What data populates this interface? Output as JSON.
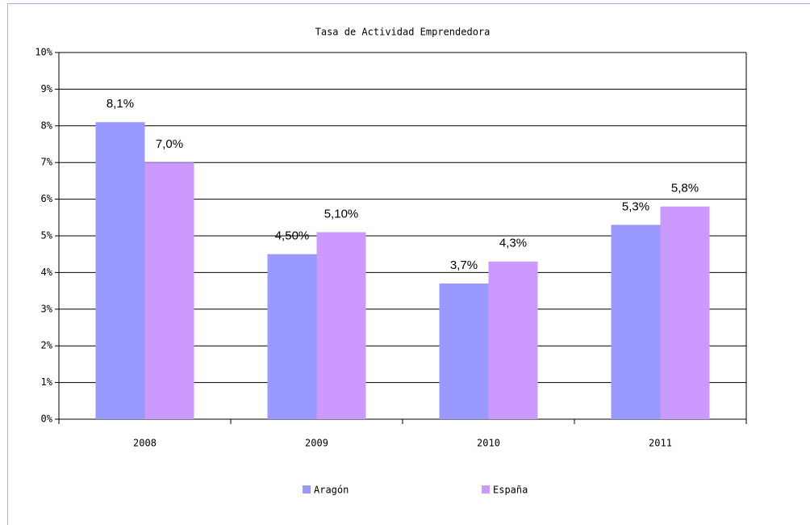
{
  "chart_data": {
    "type": "bar",
    "title": "Tasa de Actividad Emprendedora",
    "categories": [
      "2008",
      "2009",
      "2010",
      "2011"
    ],
    "series": [
      {
        "name": "Aragón",
        "color": "#9999ff",
        "values": [
          8.1,
          4.5,
          3.7,
          5.3
        ],
        "value_labels": [
          "8,1%",
          "4,50%",
          "3,7%",
          "5,3%"
        ]
      },
      {
        "name": "España",
        "color": "#cc99ff",
        "values": [
          7.0,
          5.1,
          4.3,
          5.8
        ],
        "value_labels": [
          "7,0%",
          "5,10%",
          "4,3%",
          "5,8%"
        ]
      }
    ],
    "ylim": [
      0,
      10
    ],
    "yticks": [
      {
        "value": 0,
        "label": "0%"
      },
      {
        "value": 1,
        "label": "1%"
      },
      {
        "value": 2,
        "label": "2%"
      },
      {
        "value": 3,
        "label": "3%"
      },
      {
        "value": 4,
        "label": "4%"
      },
      {
        "value": 5,
        "label": "5%"
      },
      {
        "value": 6,
        "label": "6%"
      },
      {
        "value": 7,
        "label": "7%"
      },
      {
        "value": 8,
        "label": "8%"
      },
      {
        "value": 9,
        "label": "9%"
      },
      {
        "value": 10,
        "label": "10%"
      }
    ],
    "grid": true,
    "legend": "bottom"
  }
}
